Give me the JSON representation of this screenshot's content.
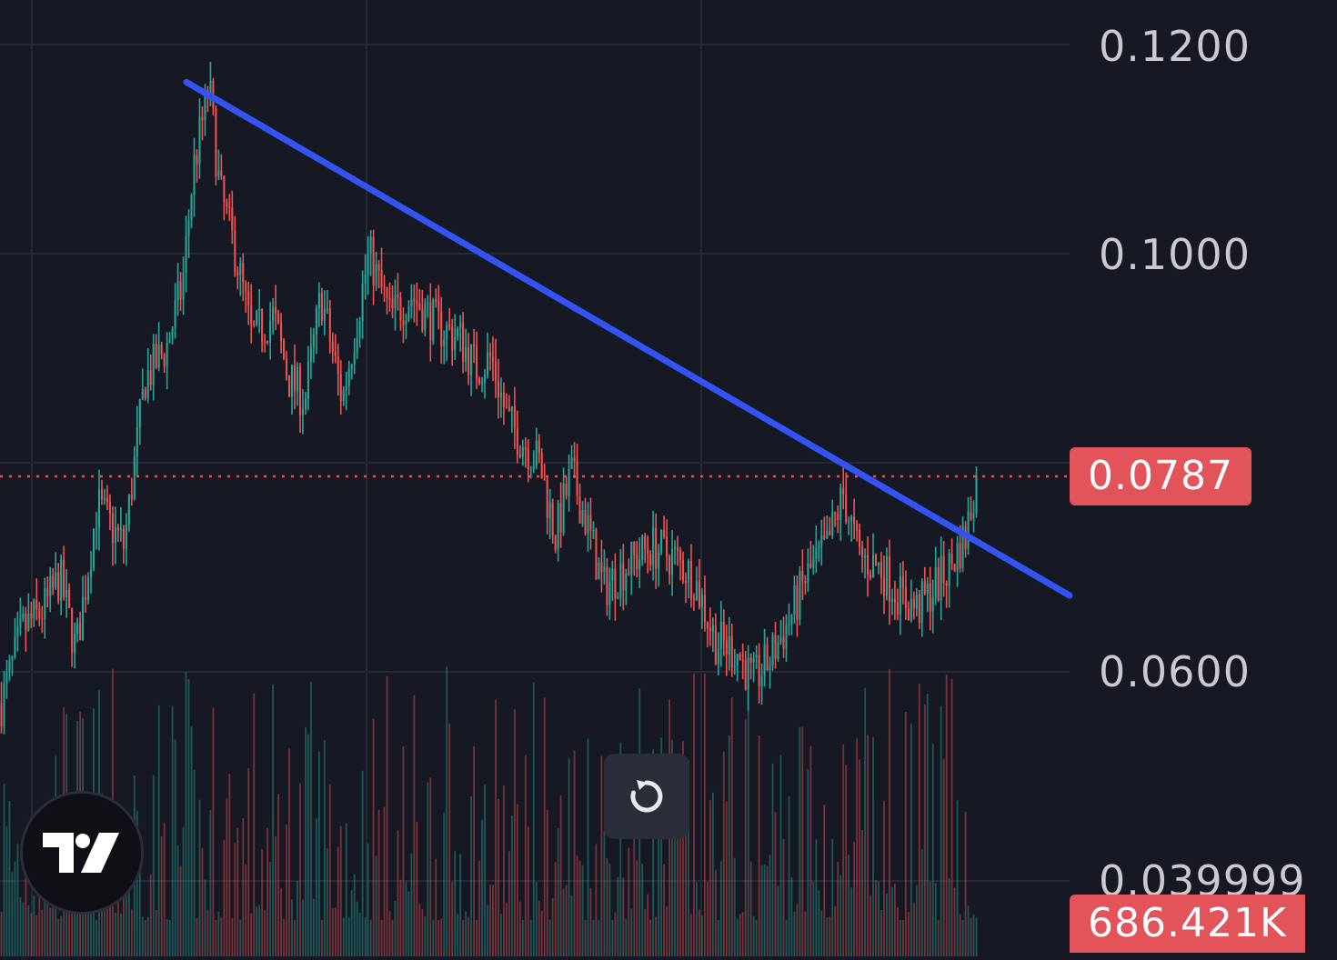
{
  "chart_data": {
    "type": "candlestick",
    "y_axis_ticks": [
      "0.1200",
      "0.1000",
      "0.0600",
      "0.039999"
    ],
    "ylim": [
      0.036,
      0.124
    ],
    "current_price": 0.0787,
    "current_price_label": "0.0787",
    "volume_label": "686.421K",
    "trendline": {
      "start_price": 0.1164,
      "end_price": 0.0673
    },
    "colors": {
      "up": "#26a69a",
      "down": "#ef5350",
      "trendline": "#3354f2",
      "price_line": "#e2545a"
    },
    "price_path": [
      [
        0.0,
        0.057
      ],
      [
        0.02,
        0.064
      ],
      [
        0.04,
        0.066
      ],
      [
        0.055,
        0.069
      ],
      [
        0.07,
        0.062
      ],
      [
        0.09,
        0.076
      ],
      [
        0.115,
        0.072
      ],
      [
        0.135,
        0.088
      ],
      [
        0.155,
        0.091
      ],
      [
        0.17,
        0.097
      ],
      [
        0.18,
        0.108
      ],
      [
        0.195,
        0.116
      ],
      [
        0.205,
        0.106
      ],
      [
        0.22,
        0.1
      ],
      [
        0.235,
        0.092
      ],
      [
        0.255,
        0.094
      ],
      [
        0.27,
        0.088
      ],
      [
        0.285,
        0.086
      ],
      [
        0.3,
        0.096
      ],
      [
        0.32,
        0.086
      ],
      [
        0.345,
        0.1
      ],
      [
        0.365,
        0.094
      ],
      [
        0.385,
        0.096
      ],
      [
        0.41,
        0.093
      ],
      [
        0.43,
        0.092
      ],
      [
        0.445,
        0.089
      ],
      [
        0.46,
        0.09
      ],
      [
        0.475,
        0.084
      ],
      [
        0.49,
        0.082
      ],
      [
        0.505,
        0.08
      ],
      [
        0.52,
        0.073
      ],
      [
        0.535,
        0.079
      ],
      [
        0.55,
        0.074
      ],
      [
        0.565,
        0.068
      ],
      [
        0.585,
        0.07
      ],
      [
        0.61,
        0.072
      ],
      [
        0.63,
        0.071
      ],
      [
        0.65,
        0.069
      ],
      [
        0.67,
        0.063
      ],
      [
        0.69,
        0.062
      ],
      [
        0.705,
        0.059
      ],
      [
        0.72,
        0.061
      ],
      [
        0.74,
        0.065
      ],
      [
        0.755,
        0.069
      ],
      [
        0.775,
        0.072
      ],
      [
        0.79,
        0.077
      ],
      [
        0.805,
        0.071
      ],
      [
        0.825,
        0.07
      ],
      [
        0.845,
        0.067
      ],
      [
        0.86,
        0.066
      ],
      [
        0.875,
        0.068
      ],
      [
        0.89,
        0.07
      ],
      [
        0.905,
        0.073
      ],
      [
        0.915,
        0.0787
      ]
    ]
  }
}
